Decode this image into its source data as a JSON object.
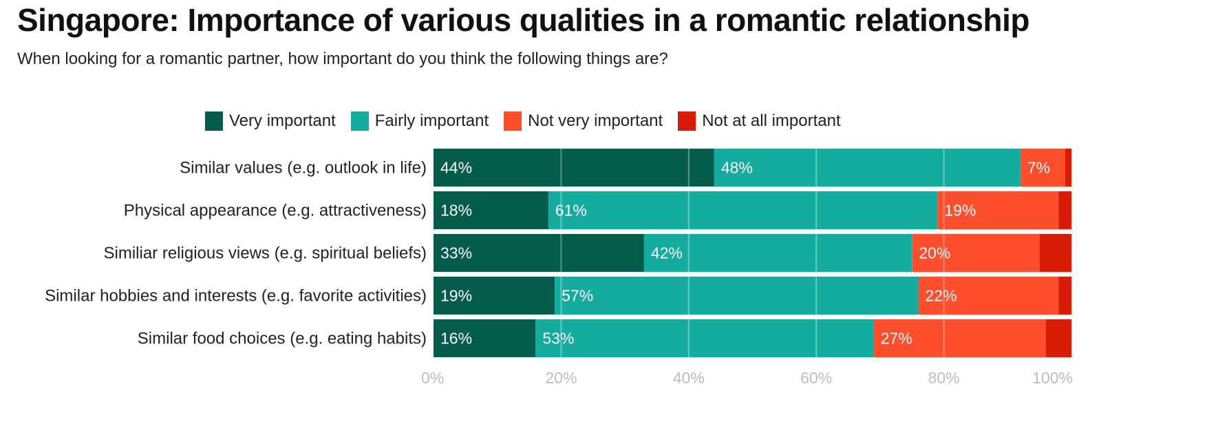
{
  "title": "Singapore: Importance of various qualities in a romantic relationship",
  "subtitle": "When looking for a romantic partner, how important do you think the following things are?",
  "chart_data": {
    "type": "bar",
    "orientation": "horizontal",
    "stacked": true,
    "categories": [
      "Similar values (e.g. outlook in life)",
      "Physical appearance (e.g. attractiveness)",
      "Similiar religious views (e.g. spiritual beliefs)",
      "Similar hobbies and interests (e.g. favorite activities)",
      "Similar food choices (e.g. eating habits)"
    ],
    "series": [
      {
        "name": "Very important",
        "color": "#045d4b",
        "values": [
          44,
          18,
          33,
          19,
          16
        ],
        "labels": [
          "44%",
          "18%",
          "33%",
          "19%",
          "16%"
        ]
      },
      {
        "name": "Fairly important",
        "color": "#14ac9e",
        "values": [
          48,
          61,
          42,
          57,
          53
        ],
        "labels": [
          "48%",
          "61%",
          "42%",
          "57%",
          "53%"
        ]
      },
      {
        "name": "Not very important",
        "color": "#ff4e2b",
        "values": [
          7,
          19,
          20,
          22,
          27
        ],
        "labels": [
          "7%",
          "19%",
          "20%",
          "22%",
          "27%"
        ]
      },
      {
        "name": "Not at all important",
        "color": "#d81c06",
        "values": [
          1,
          2,
          5,
          2,
          4
        ],
        "labels": [
          "",
          "",
          "",
          "",
          ""
        ]
      }
    ],
    "xlim": [
      0,
      100
    ],
    "x_ticks": [
      "0%",
      "20%",
      "40%",
      "60%",
      "80%",
      "100%"
    ],
    "grid": true,
    "legend_position": "top"
  }
}
